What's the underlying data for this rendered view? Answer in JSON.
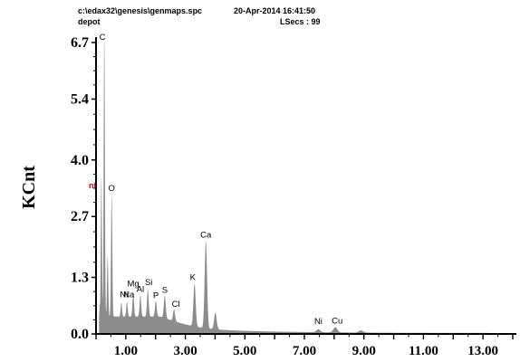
{
  "header": {
    "file_path": "c:\\edax32\\genesis\\genmaps.spc",
    "date_time": "20-Apr-2014 16:41:50",
    "sample_name": "depot",
    "lsecs": "LSecs : 99"
  },
  "side_fragment": "nt",
  "chart_data": {
    "type": "area",
    "ylabel": "KCnt",
    "xlabel": "",
    "xlim": [
      0,
      14.0
    ],
    "ylim": [
      0,
      6.7
    ],
    "x_ticks": [
      "1.00",
      "3.00",
      "5.00",
      "7.00",
      "9.00",
      "11.00",
      "13.00"
    ],
    "y_ticks": [
      "0.0",
      "1.3",
      "2.7",
      "4.0",
      "5.4",
      "6.7"
    ],
    "grid": false,
    "legend": "none",
    "fill_color": "#8c8c8c",
    "peaks": [
      {
        "x": 0.1,
        "y": 0.55
      },
      {
        "x": 0.18,
        "y": 3.2
      },
      {
        "x": 0.277,
        "y": 6.55,
        "label": "C"
      },
      {
        "x": 0.39,
        "y": 1.4
      },
      {
        "x": 0.525,
        "y": 2.8,
        "label": "O"
      },
      {
        "x": 0.85,
        "y": 0.32,
        "label": "Ni"
      },
      {
        "x": 1.04,
        "y": 0.34,
        "label": "Na"
      },
      {
        "x": 1.25,
        "y": 0.55,
        "label": "Mg"
      },
      {
        "x": 1.49,
        "y": 0.48,
        "label": "Al"
      },
      {
        "x": 1.74,
        "y": 0.62,
        "label": "Si"
      },
      {
        "x": 2.01,
        "y": 0.36,
        "label": "P"
      },
      {
        "x": 2.31,
        "y": 0.52,
        "label": "S"
      },
      {
        "x": 2.62,
        "y": 0.27,
        "label": "Cl"
      },
      {
        "x": 3.31,
        "y": 0.98,
        "label": "K"
      },
      {
        "x": 3.69,
        "y": 2.0,
        "label": "Ca"
      },
      {
        "x": 4.01,
        "y": 0.38
      },
      {
        "x": 7.47,
        "y": 0.07,
        "label": "Ni"
      },
      {
        "x": 8.04,
        "y": 0.12,
        "label": "Cu"
      },
      {
        "x": 8.9,
        "y": 0.05
      }
    ]
  }
}
